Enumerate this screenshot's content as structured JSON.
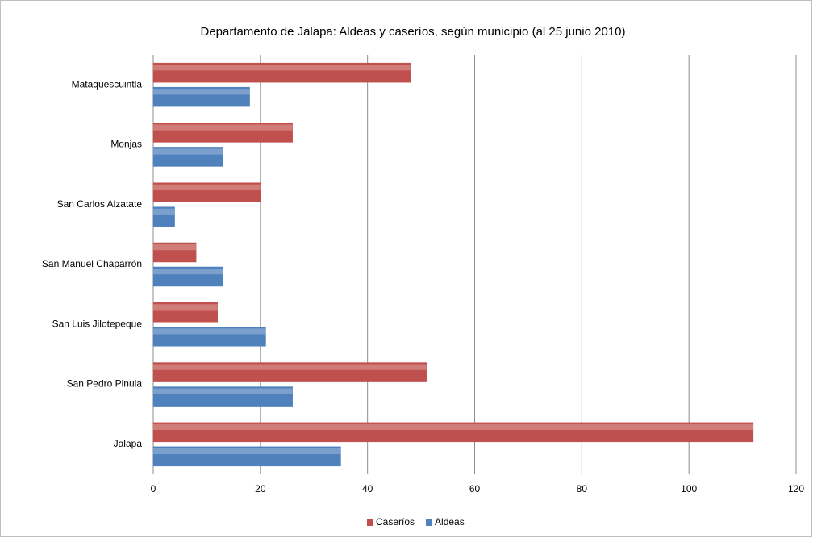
{
  "chart_data": {
    "type": "hbar",
    "title": "Departamento de Jalapa: Aldeas y caseríos, según municipio (al 25 junio 2010)",
    "categories": [
      "Mataquescuintla",
      "Monjas",
      "San Carlos Alzatate",
      "San Manuel Chaparrón",
      "San Luis Jilotepeque",
      "San Pedro Pinula",
      "Jalapa"
    ],
    "series": [
      {
        "name": "Caseríos",
        "color": "#c0504d",
        "values": [
          48,
          26,
          20,
          8,
          12,
          51,
          112
        ]
      },
      {
        "name": "Aldeas",
        "color": "#4f81bd",
        "values": [
          18,
          13,
          4,
          13,
          21,
          26,
          35
        ]
      }
    ],
    "xlim": [
      0,
      120
    ],
    "xticks": [
      0,
      20,
      40,
      60,
      80,
      100,
      120
    ],
    "grid": true,
    "legend": "bottom"
  }
}
